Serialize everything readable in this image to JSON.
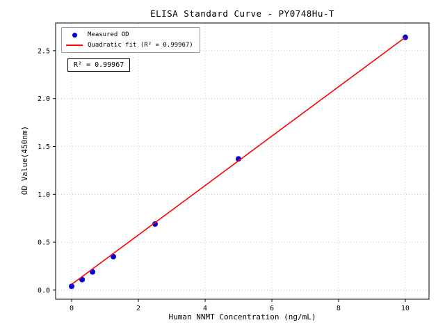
{
  "chart_data": {
    "type": "scatter",
    "title": "ELISA Standard Curve - PY0748Hu-T",
    "xlabel": "Human NNMT Concentration (ng/mL)",
    "ylabel": "OD Value(450nm)",
    "annotation": "R² = 0.99967",
    "r_squared": 0.99967,
    "series": [
      {
        "name": "Measured OD",
        "kind": "scatter",
        "color": "#0000dd",
        "x": [
          0,
          0.313,
          0.625,
          1.25,
          2.5,
          5,
          10
        ],
        "y": [
          0.04,
          0.11,
          0.19,
          0.35,
          0.69,
          1.37,
          2.64
        ]
      },
      {
        "name": "Quadratic fit (R² = 0.99967)",
        "kind": "line",
        "color": "#ff0000",
        "x": [
          0,
          10
        ],
        "y": [
          0.06,
          2.64
        ]
      }
    ],
    "xticks": [
      0,
      2,
      4,
      6,
      8,
      10
    ],
    "xtick_labels": [
      "0",
      "2",
      "4",
      "6",
      "8",
      "10"
    ],
    "yticks": [
      0,
      0.5,
      1.0,
      1.5,
      2.0,
      2.5
    ],
    "ytick_labels": [
      "0.0",
      "0.5",
      "1.0",
      "1.5",
      "2.0",
      "2.5"
    ],
    "xlim": [
      -0.48,
      10.71
    ],
    "ylim": [
      -0.095,
      2.79
    ],
    "grid": true,
    "grid_style": "dotted",
    "legend_position": "upper left"
  }
}
